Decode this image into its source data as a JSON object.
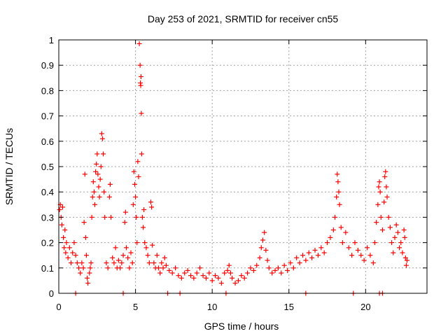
{
  "chart_data": {
    "type": "scatter",
    "title": "Day 253 of 2021, SRMTID for receiver cn55",
    "xlabel": "GPS time / hours",
    "ylabel": "SRMTID / TECUs",
    "xlim": [
      0,
      24
    ],
    "ylim": [
      0,
      1
    ],
    "xticks": [
      0,
      5,
      10,
      15,
      20
    ],
    "yticks": [
      0,
      0.1,
      0.2,
      0.3,
      0.4,
      0.5,
      0.6,
      0.7,
      0.8,
      0.9,
      1
    ],
    "xtick_labels": [
      "0",
      "5",
      "10",
      "15",
      "20"
    ],
    "ytick_labels": [
      "0",
      "0.1",
      "0.2",
      "0.3",
      "0.4",
      "0.5",
      "0.6",
      "0.7",
      "0.8",
      "0.9",
      "1"
    ],
    "grid": true,
    "marker": "+",
    "color": "#ff0000",
    "series": [
      {
        "name": "SRMTID",
        "points": [
          [
            0.05,
            0.33
          ],
          [
            0.1,
            0.35
          ],
          [
            0.15,
            0.3
          ],
          [
            0.2,
            0.27
          ],
          [
            0.25,
            0.34
          ],
          [
            0.3,
            0.22
          ],
          [
            0.35,
            0.18
          ],
          [
            0.4,
            0.25
          ],
          [
            0.45,
            0.16
          ],
          [
            0.5,
            0.2
          ],
          [
            0.6,
            0.14
          ],
          [
            0.7,
            0.18
          ],
          [
            0.8,
            0.12
          ],
          [
            0.9,
            0.16
          ],
          [
            1.0,
            0.2
          ],
          [
            1.1,
            0.15
          ],
          [
            1.2,
            0.12
          ],
          [
            1.3,
            0.1
          ],
          [
            1.4,
            0.08
          ],
          [
            1.5,
            0.12
          ],
          [
            1.6,
            0.1
          ],
          [
            1.65,
            0.28
          ],
          [
            1.7,
            0.47
          ],
          [
            1.75,
            0.22
          ],
          [
            1.8,
            0.15
          ],
          [
            1.85,
            0.06
          ],
          [
            1.9,
            0.04
          ],
          [
            2.0,
            0.08
          ],
          [
            2.05,
            0.1
          ],
          [
            2.1,
            0.12
          ],
          [
            2.15,
            0.3
          ],
          [
            2.2,
            0.38
          ],
          [
            2.25,
            0.44
          ],
          [
            2.3,
            0.4
          ],
          [
            2.35,
            0.35
          ],
          [
            2.4,
            0.48
          ],
          [
            2.45,
            0.51
          ],
          [
            2.5,
            0.55
          ],
          [
            2.55,
            0.47
          ],
          [
            2.6,
            0.42
          ],
          [
            2.65,
            0.38
          ],
          [
            2.7,
            0.45
          ],
          [
            2.75,
            0.5
          ],
          [
            2.8,
            0.63
          ],
          [
            2.85,
            0.61
          ],
          [
            2.9,
            0.55
          ],
          [
            2.95,
            0.4
          ],
          [
            3.0,
            0.3
          ],
          [
            3.1,
            0.12
          ],
          [
            3.2,
            0.1
          ],
          [
            3.3,
            0.38
          ],
          [
            3.35,
            0.43
          ],
          [
            3.4,
            0.3
          ],
          [
            3.5,
            0.14
          ],
          [
            3.6,
            0.12
          ],
          [
            3.7,
            0.18
          ],
          [
            3.8,
            0.1
          ],
          [
            3.9,
            0.13
          ],
          [
            4.0,
            0.1
          ],
          [
            4.1,
            0.12
          ],
          [
            4.2,
            0.15
          ],
          [
            4.3,
            0.28
          ],
          [
            4.35,
            0.32
          ],
          [
            4.4,
            0.18
          ],
          [
            4.5,
            0.14
          ],
          [
            4.6,
            0.1
          ],
          [
            4.7,
            0.16
          ],
          [
            4.8,
            0.12
          ],
          [
            4.85,
            0.35
          ],
          [
            4.9,
            0.48
          ],
          [
            4.95,
            0.43
          ],
          [
            5.0,
            0.38
          ],
          [
            5.05,
            0.3
          ],
          [
            5.1,
            0.2
          ],
          [
            5.15,
            0.52
          ],
          [
            5.2,
            0.46
          ],
          [
            5.25,
            0.985
          ],
          [
            5.3,
            0.9
          ],
          [
            5.32,
            0.83
          ],
          [
            5.34,
            0.82
          ],
          [
            5.36,
            0.855
          ],
          [
            5.38,
            0.71
          ],
          [
            5.4,
            0.55
          ],
          [
            5.45,
            0.3
          ],
          [
            5.5,
            0.26
          ],
          [
            5.55,
            0.33
          ],
          [
            5.6,
            0.2
          ],
          [
            5.7,
            0.18
          ],
          [
            5.8,
            0.15
          ],
          [
            5.9,
            0.12
          ],
          [
            6.0,
            0.36
          ],
          [
            6.05,
            0.34
          ],
          [
            6.1,
            0.19
          ],
          [
            6.2,
            0.12
          ],
          [
            6.3,
            0.1
          ],
          [
            6.4,
            0.15
          ],
          [
            6.5,
            0.1
          ],
          [
            6.6,
            0.08
          ],
          [
            6.7,
            0.12
          ],
          [
            6.8,
            0.1
          ],
          [
            6.9,
            0.14
          ],
          [
            7.0,
            0.11
          ],
          [
            7.2,
            0.09
          ],
          [
            7.4,
            0.08
          ],
          [
            7.6,
            0.1
          ],
          [
            7.8,
            0.07
          ],
          [
            8.0,
            0.06
          ],
          [
            8.2,
            0.08
          ],
          [
            8.4,
            0.09
          ],
          [
            8.6,
            0.07
          ],
          [
            8.8,
            0.06
          ],
          [
            9.0,
            0.08
          ],
          [
            9.2,
            0.1
          ],
          [
            9.4,
            0.07
          ],
          [
            9.6,
            0.06
          ],
          [
            9.8,
            0.08
          ],
          [
            10.0,
            0.05
          ],
          [
            10.2,
            0.07
          ],
          [
            10.4,
            0.06
          ],
          [
            10.6,
            0.04
          ],
          [
            10.8,
            0.08
          ],
          [
            11.0,
            0.09
          ],
          [
            11.1,
            0.11
          ],
          [
            11.2,
            0.08
          ],
          [
            11.3,
            0.06
          ],
          [
            11.5,
            0.04
          ],
          [
            11.7,
            0.05
          ],
          [
            11.9,
            0.07
          ],
          [
            12.1,
            0.06
          ],
          [
            12.3,
            0.08
          ],
          [
            12.5,
            0.1
          ],
          [
            12.7,
            0.09
          ],
          [
            12.9,
            0.11
          ],
          [
            13.1,
            0.14
          ],
          [
            13.2,
            0.18
          ],
          [
            13.3,
            0.21
          ],
          [
            13.4,
            0.24
          ],
          [
            13.5,
            0.17
          ],
          [
            13.6,
            0.13
          ],
          [
            13.7,
            0.1
          ],
          [
            13.9,
            0.08
          ],
          [
            14.1,
            0.09
          ],
          [
            14.3,
            0.1
          ],
          [
            14.5,
            0.08
          ],
          [
            14.7,
            0.11
          ],
          [
            14.9,
            0.09
          ],
          [
            15.1,
            0.12
          ],
          [
            15.3,
            0.1
          ],
          [
            15.5,
            0.14
          ],
          [
            15.7,
            0.12
          ],
          [
            15.9,
            0.15
          ],
          [
            16.1,
            0.13
          ],
          [
            16.3,
            0.16
          ],
          [
            16.5,
            0.14
          ],
          [
            16.7,
            0.17
          ],
          [
            16.9,
            0.15
          ],
          [
            17.1,
            0.18
          ],
          [
            17.3,
            0.16
          ],
          [
            17.5,
            0.2
          ],
          [
            17.7,
            0.22
          ],
          [
            17.9,
            0.25
          ],
          [
            18.0,
            0.3
          ],
          [
            18.1,
            0.38
          ],
          [
            18.15,
            0.47
          ],
          [
            18.2,
            0.44
          ],
          [
            18.25,
            0.4
          ],
          [
            18.3,
            0.35
          ],
          [
            18.4,
            0.26
          ],
          [
            18.5,
            0.2
          ],
          [
            18.7,
            0.24
          ],
          [
            18.9,
            0.18
          ],
          [
            19.1,
            0.15
          ],
          [
            19.3,
            0.2
          ],
          [
            19.5,
            0.17
          ],
          [
            19.7,
            0.15
          ],
          [
            19.9,
            0.13
          ],
          [
            20.1,
            0.18
          ],
          [
            20.3,
            0.15
          ],
          [
            20.5,
            0.12
          ],
          [
            20.6,
            0.2
          ],
          [
            20.7,
            0.28
          ],
          [
            20.8,
            0.35
          ],
          [
            20.85,
            0.42
          ],
          [
            20.9,
            0.44
          ],
          [
            20.95,
            0.4
          ],
          [
            21.0,
            0.3
          ],
          [
            21.1,
            0.25
          ],
          [
            21.2,
            0.36
          ],
          [
            21.25,
            0.46
          ],
          [
            21.3,
            0.48
          ],
          [
            21.35,
            0.42
          ],
          [
            21.4,
            0.38
          ],
          [
            21.5,
            0.3
          ],
          [
            21.6,
            0.26
          ],
          [
            21.7,
            0.2
          ],
          [
            21.8,
            0.16
          ],
          [
            21.9,
            0.22
          ],
          [
            22.0,
            0.27
          ],
          [
            22.1,
            0.24
          ],
          [
            22.2,
            0.18
          ],
          [
            22.3,
            0.2
          ],
          [
            22.4,
            0.16
          ],
          [
            22.5,
            0.25
          ],
          [
            22.55,
            0.22
          ],
          [
            22.6,
            0.14
          ],
          [
            22.65,
            0.11
          ],
          [
            22.7,
            0.13
          ],
          [
            1.1,
            0.0
          ],
          [
            4.2,
            0.0
          ],
          [
            7.1,
            0.0
          ],
          [
            7.9,
            0.0
          ],
          [
            10.9,
            0.0
          ],
          [
            16.1,
            0.0
          ],
          [
            19.2,
            0.0
          ],
          [
            20.9,
            0.0
          ],
          [
            21.1,
            0.0
          ]
        ]
      }
    ]
  }
}
